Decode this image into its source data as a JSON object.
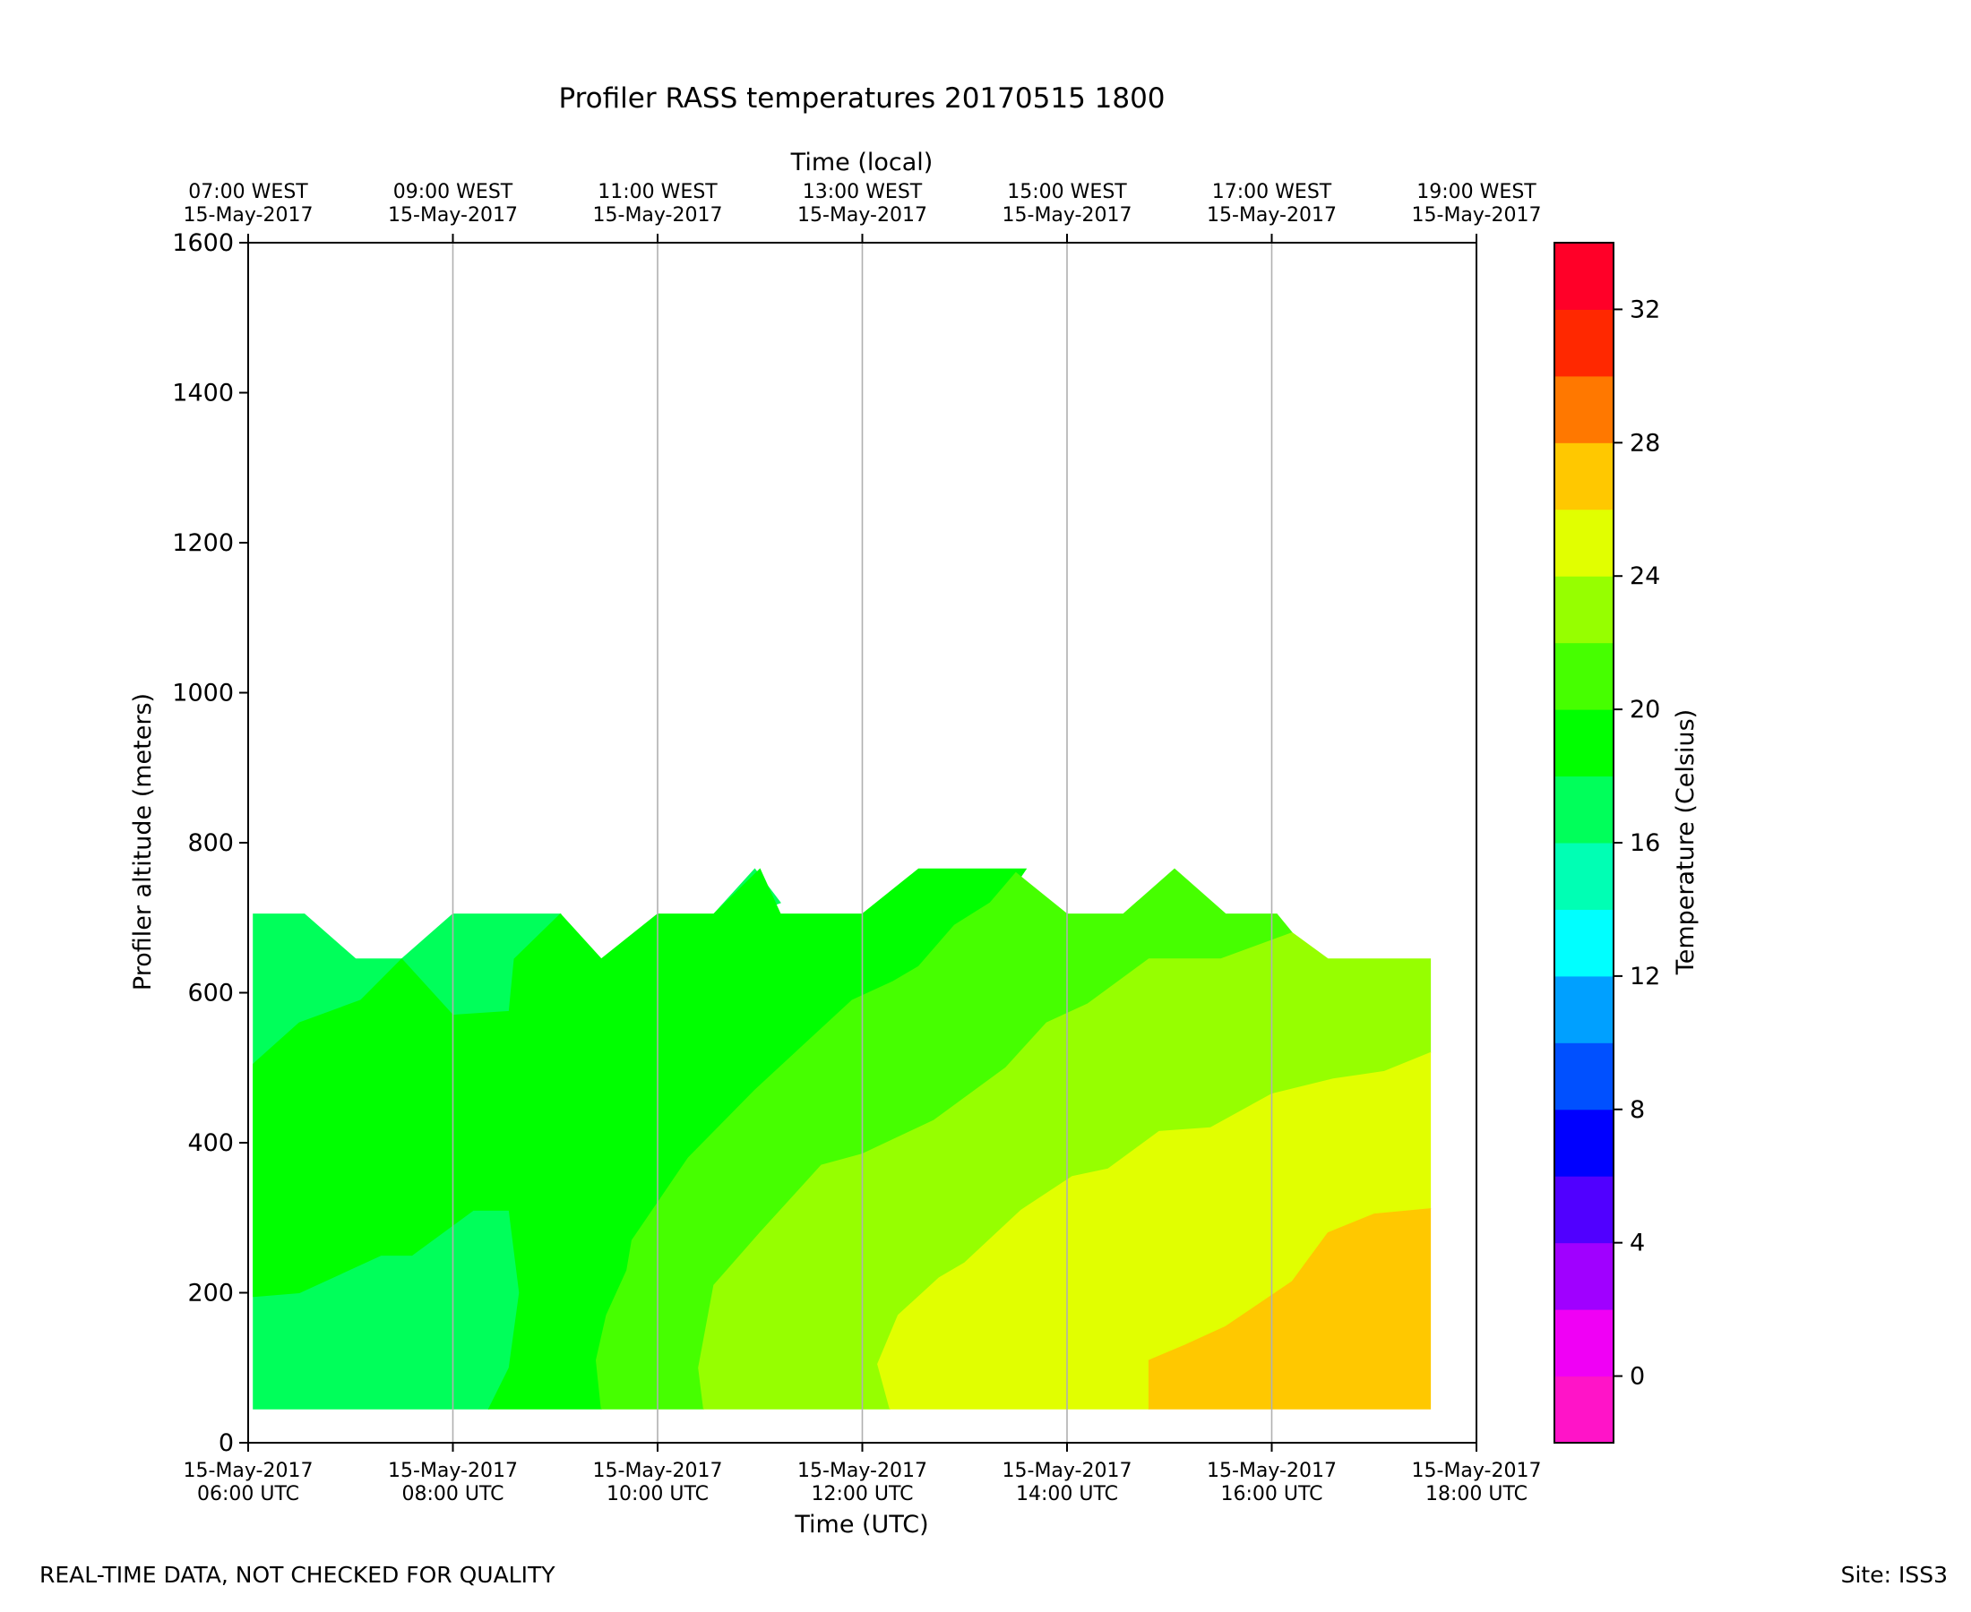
{
  "chart_data": {
    "type": "contour",
    "title": "Profiler RASS temperatures 20170515 1800",
    "xlabel": "Time (UTC)",
    "xlabel_top": "Time (local)",
    "ylabel": "Profiler altitude (meters)",
    "colorbar_label": "Temperature (Celsius)",
    "xlim_hours_utc": [
      6,
      18
    ],
    "ylim": [
      0,
      1600
    ],
    "yticks": [
      0,
      200,
      400,
      600,
      800,
      1000,
      1200,
      1400,
      1600
    ],
    "xticks": [
      {
        "hour": 6,
        "date": "15-May-2017",
        "time": "06:00 UTC"
      },
      {
        "hour": 8,
        "date": "15-May-2017",
        "time": "08:00 UTC"
      },
      {
        "hour": 10,
        "date": "15-May-2017",
        "time": "10:00 UTC"
      },
      {
        "hour": 12,
        "date": "15-May-2017",
        "time": "12:00 UTC"
      },
      {
        "hour": 14,
        "date": "15-May-2017",
        "time": "14:00 UTC"
      },
      {
        "hour": 16,
        "date": "15-May-2017",
        "time": "16:00 UTC"
      },
      {
        "hour": 18,
        "date": "15-May-2017",
        "time": "18:00 UTC"
      }
    ],
    "xticks_top": [
      {
        "hour": 6,
        "time": "07:00 WEST",
        "date": "15-May-2017"
      },
      {
        "hour": 8,
        "time": "09:00 WEST",
        "date": "15-May-2017"
      },
      {
        "hour": 10,
        "time": "11:00 WEST",
        "date": "15-May-2017"
      },
      {
        "hour": 12,
        "time": "13:00 WEST",
        "date": "15-May-2017"
      },
      {
        "hour": 14,
        "time": "15:00 WEST",
        "date": "15-May-2017"
      },
      {
        "hour": 16,
        "time": "17:00 WEST",
        "date": "15-May-2017"
      },
      {
        "hour": 18,
        "time": "19:00 WEST",
        "date": "15-May-2017"
      }
    ],
    "grid": "vertical at major x ticks",
    "colorbar": {
      "range": [
        -2,
        34
      ],
      "step": 2,
      "ticks": [
        0,
        4,
        8,
        12,
        16,
        20,
        24,
        28,
        32
      ],
      "levels": [
        {
          "from": -2,
          "to": 0,
          "color": "#ff14c8"
        },
        {
          "from": 0,
          "to": 2,
          "color": "#f000f5"
        },
        {
          "from": 2,
          "to": 4,
          "color": "#a000ff"
        },
        {
          "from": 4,
          "to": 6,
          "color": "#5000ff"
        },
        {
          "from": 6,
          "to": 8,
          "color": "#0000ff"
        },
        {
          "from": 8,
          "to": 10,
          "color": "#0050ff"
        },
        {
          "from": 10,
          "to": 12,
          "color": "#00a0ff"
        },
        {
          "from": 12,
          "to": 14,
          "color": "#00ffff"
        },
        {
          "from": 14,
          "to": 16,
          "color": "#00ffb4"
        },
        {
          "from": 16,
          "to": 18,
          "color": "#00ff5a"
        },
        {
          "from": 18,
          "to": 20,
          "color": "#00ff00"
        },
        {
          "from": 20,
          "to": 22,
          "color": "#46ff00"
        },
        {
          "from": 22,
          "to": 24,
          "color": "#96ff00"
        },
        {
          "from": 24,
          "to": 26,
          "color": "#e1ff00"
        },
        {
          "from": 26,
          "to": 28,
          "color": "#ffc800"
        },
        {
          "from": 28,
          "to": 30,
          "color": "#ff7800"
        },
        {
          "from": 30,
          "to": 32,
          "color": "#ff2800"
        },
        {
          "from": 32,
          "to": 34,
          "color": "#ff0028"
        }
      ]
    },
    "temperature_regions": [
      {
        "level": "16-18",
        "color": "#00ff5a",
        "points": [
          [
            6.05,
            45
          ],
          [
            8.35,
            45
          ],
          [
            8.55,
            100
          ],
          [
            8.65,
            200
          ],
          [
            8.55,
            310
          ],
          [
            8.2,
            310
          ],
          [
            7.6,
            250
          ],
          [
            7.3,
            250
          ],
          [
            6.5,
            200
          ],
          [
            6.05,
            195
          ],
          [
            6.05,
            505
          ],
          [
            6.5,
            560
          ],
          [
            7.1,
            590
          ],
          [
            7.5,
            645
          ],
          [
            8.0,
            570
          ],
          [
            8.55,
            575
          ],
          [
            8.6,
            645
          ],
          [
            9.05,
            705
          ],
          [
            8.0,
            705
          ],
          [
            7.5,
            645
          ],
          [
            7.05,
            645
          ],
          [
            6.55,
            705
          ],
          [
            6.05,
            705
          ]
        ]
      },
      {
        "level": "16-18",
        "color": "#00ff5a",
        "points": [
          [
            10.55,
            705
          ],
          [
            10.95,
            765
          ],
          [
            11.2,
            720
          ],
          [
            10.9,
            705
          ]
        ]
      },
      {
        "level": "18-20",
        "color": "#00ff00",
        "points": [
          [
            6.05,
            195
          ],
          [
            6.5,
            200
          ],
          [
            7.3,
            250
          ],
          [
            7.6,
            250
          ],
          [
            8.2,
            310
          ],
          [
            8.55,
            310
          ],
          [
            8.65,
            200
          ],
          [
            8.55,
            100
          ],
          [
            8.35,
            45
          ],
          [
            9.45,
            45
          ],
          [
            9.4,
            110
          ],
          [
            9.5,
            170
          ],
          [
            9.7,
            230
          ],
          [
            9.75,
            270
          ],
          [
            9.85,
            290
          ],
          [
            10.3,
            380
          ],
          [
            10.95,
            470
          ],
          [
            11.9,
            590
          ],
          [
            12.3,
            615
          ],
          [
            12.55,
            635
          ],
          [
            12.9,
            690
          ],
          [
            13.25,
            720
          ],
          [
            13.5,
            745
          ],
          [
            13.6,
            765
          ],
          [
            12.55,
            765
          ],
          [
            12.0,
            705
          ],
          [
            11.2,
            705
          ],
          [
            11.0,
            765
          ],
          [
            10.55,
            705
          ],
          [
            10.0,
            705
          ],
          [
            9.45,
            645
          ],
          [
            9.05,
            705
          ],
          [
            8.6,
            645
          ],
          [
            8.55,
            575
          ],
          [
            8.0,
            570
          ],
          [
            7.5,
            645
          ],
          [
            7.1,
            590
          ],
          [
            6.5,
            560
          ],
          [
            6.05,
            505
          ]
        ]
      },
      {
        "level": "20-22",
        "color": "#46ff00",
        "points": [
          [
            9.45,
            45
          ],
          [
            9.95,
            45
          ],
          [
            10.45,
            45
          ],
          [
            10.4,
            100
          ],
          [
            10.55,
            210
          ],
          [
            11.0,
            280
          ],
          [
            11.6,
            370
          ],
          [
            12.0,
            385
          ],
          [
            12.7,
            430
          ],
          [
            13.4,
            500
          ],
          [
            13.8,
            560
          ],
          [
            14.2,
            585
          ],
          [
            14.8,
            645
          ],
          [
            15.5,
            645
          ],
          [
            16.2,
            680
          ],
          [
            16.05,
            705
          ],
          [
            15.55,
            705
          ],
          [
            15.05,
            765
          ],
          [
            14.55,
            705
          ],
          [
            14.0,
            705
          ],
          [
            13.5,
            760
          ],
          [
            13.25,
            720
          ],
          [
            12.9,
            690
          ],
          [
            12.55,
            635
          ],
          [
            12.3,
            615
          ],
          [
            11.9,
            590
          ],
          [
            10.95,
            470
          ],
          [
            10.3,
            380
          ],
          [
            9.85,
            290
          ],
          [
            9.75,
            270
          ],
          [
            9.7,
            230
          ],
          [
            9.5,
            170
          ],
          [
            9.4,
            110
          ]
        ]
      },
      {
        "level": "22-24",
        "color": "#96ff00",
        "points": [
          [
            10.45,
            45
          ],
          [
            12.27,
            45
          ],
          [
            12.15,
            105
          ],
          [
            12.35,
            170
          ],
          [
            12.75,
            220
          ],
          [
            13.0,
            240
          ],
          [
            13.55,
            310
          ],
          [
            14.05,
            355
          ],
          [
            14.4,
            365
          ],
          [
            14.9,
            415
          ],
          [
            15.4,
            420
          ],
          [
            16.0,
            465
          ],
          [
            16.6,
            485
          ],
          [
            17.1,
            495
          ],
          [
            17.55,
            520
          ],
          [
            17.55,
            645
          ],
          [
            16.55,
            645
          ],
          [
            16.2,
            680
          ],
          [
            15.5,
            645
          ],
          [
            14.8,
            645
          ],
          [
            14.2,
            585
          ],
          [
            13.8,
            560
          ],
          [
            13.4,
            500
          ],
          [
            12.7,
            430
          ],
          [
            12.0,
            385
          ],
          [
            11.6,
            370
          ],
          [
            11.0,
            280
          ],
          [
            10.55,
            210
          ],
          [
            10.4,
            100
          ]
        ]
      },
      {
        "level": "24-26",
        "color": "#e1ff00",
        "points": [
          [
            12.27,
            45
          ],
          [
            14.8,
            45
          ],
          [
            14.8,
            110
          ],
          [
            15.15,
            130
          ],
          [
            15.55,
            155
          ],
          [
            16.2,
            215
          ],
          [
            16.55,
            280
          ],
          [
            17.0,
            305
          ],
          [
            17.55,
            312
          ],
          [
            17.55,
            520
          ],
          [
            17.1,
            495
          ],
          [
            16.6,
            485
          ],
          [
            16.0,
            465
          ],
          [
            15.4,
            420
          ],
          [
            14.9,
            415
          ],
          [
            14.4,
            365
          ],
          [
            14.05,
            355
          ],
          [
            13.55,
            310
          ],
          [
            13.0,
            240
          ],
          [
            12.75,
            220
          ],
          [
            12.35,
            170
          ],
          [
            12.15,
            105
          ]
        ]
      },
      {
        "level": "26-28",
        "color": "#ffc800",
        "points": [
          [
            14.8,
            45
          ],
          [
            17.55,
            45
          ],
          [
            17.55,
            312
          ],
          [
            17.0,
            305
          ],
          [
            16.55,
            280
          ],
          [
            16.2,
            215
          ],
          [
            15.55,
            155
          ],
          [
            15.15,
            130
          ],
          [
            14.8,
            110
          ]
        ]
      }
    ]
  },
  "footer": {
    "left": "REAL-TIME DATA, NOT CHECKED FOR QUALITY",
    "right": "Site: ISS3"
  }
}
